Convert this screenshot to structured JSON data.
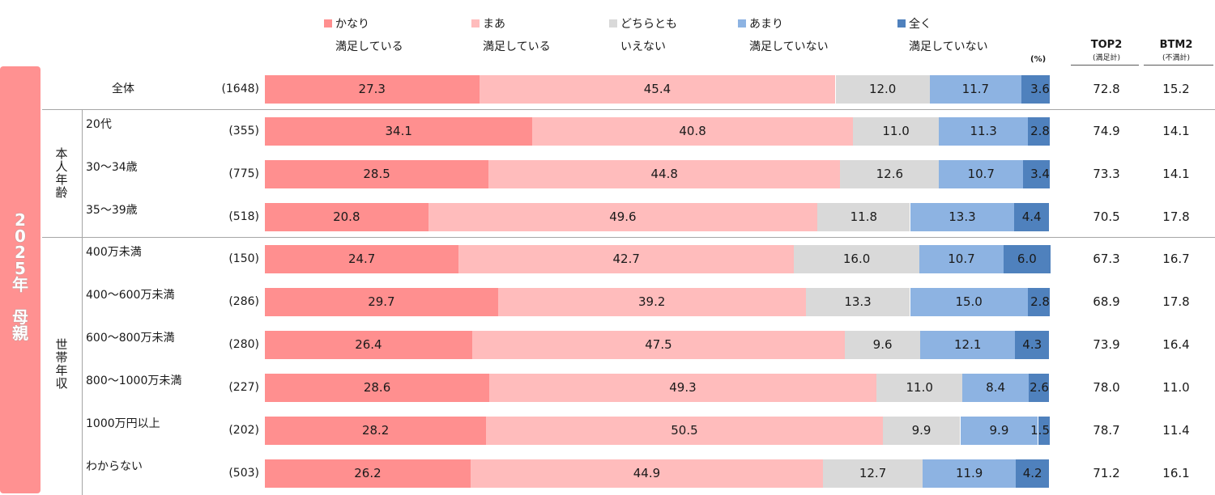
{
  "chart_data": {
    "type": "bar",
    "orientation": "horizontal-stacked-100",
    "unit_label": "(%)",
    "legend_position": "top",
    "series": [
      {
        "name": "かなり満足している",
        "line1": "かなり",
        "line2": "満足している",
        "color": "#ff8f8f"
      },
      {
        "name": "まあ満足している",
        "line1": "まあ",
        "line2": "満足している",
        "color": "#ffbcbc"
      },
      {
        "name": "どちらともいえない",
        "line1": "どちらとも",
        "line2": "いえない",
        "color": "#d9d9d9"
      },
      {
        "name": "あまり満足していない",
        "line1": "あまり",
        "line2": "満足していない",
        "color": "#8db3e2"
      },
      {
        "name": "全く満足していない",
        "line1": "全く",
        "line2": "満足していない",
        "color": "#4f81bd"
      }
    ],
    "summary_columns": [
      {
        "title": "TOP2",
        "subtitle": "(満足計)"
      },
      {
        "title": "BTM2",
        "subtitle": "(不満計)"
      }
    ],
    "side_label": [
      "2",
      "0",
      "2",
      "5",
      "年",
      "",
      "母",
      "親"
    ],
    "groups": [
      {
        "name": "",
        "chars": []
      },
      {
        "name": "本人年齢",
        "chars": [
          "本",
          "人",
          "年",
          "齢"
        ]
      },
      {
        "name": "世帯年収",
        "chars": [
          "世",
          "帯",
          "年",
          "収"
        ]
      }
    ],
    "rows": [
      {
        "label": "全体",
        "n": "(1648)",
        "group": 0,
        "values": [
          27.3,
          45.4,
          12.0,
          11.7,
          3.6
        ],
        "top2": "72.8",
        "btm2": "15.2"
      },
      {
        "label": "20代",
        "n": "(355)",
        "group": 1,
        "values": [
          34.1,
          40.8,
          11.0,
          11.3,
          2.8
        ],
        "top2": "74.9",
        "btm2": "14.1"
      },
      {
        "label": "30～34歳",
        "n": "(775)",
        "group": 1,
        "values": [
          28.5,
          44.8,
          12.6,
          10.7,
          3.4
        ],
        "top2": "73.3",
        "btm2": "14.1"
      },
      {
        "label": "35～39歳",
        "n": "(518)",
        "group": 1,
        "values": [
          20.8,
          49.6,
          11.8,
          13.3,
          4.4
        ],
        "top2": "70.5",
        "btm2": "17.8"
      },
      {
        "label": "400万未満",
        "n": "(150)",
        "group": 2,
        "values": [
          24.7,
          42.7,
          16.0,
          10.7,
          6.0
        ],
        "top2": "67.3",
        "btm2": "16.7"
      },
      {
        "label": "400～600万未満",
        "n": "(286)",
        "group": 2,
        "values": [
          29.7,
          39.2,
          13.3,
          15.0,
          2.8
        ],
        "top2": "68.9",
        "btm2": "17.8"
      },
      {
        "label": "600～800万未満",
        "n": "(280)",
        "group": 2,
        "values": [
          26.4,
          47.5,
          9.6,
          12.1,
          4.3
        ],
        "top2": "73.9",
        "btm2": "16.4"
      },
      {
        "label": "800～1000万未満",
        "n": "(227)",
        "group": 2,
        "values": [
          28.6,
          49.3,
          11.0,
          8.4,
          2.6
        ],
        "top2": "78.0",
        "btm2": "11.0"
      },
      {
        "label": "1000万円以上",
        "n": "(202)",
        "group": 2,
        "values": [
          28.2,
          50.5,
          9.9,
          9.9,
          1.5
        ],
        "top2": "78.7",
        "btm2": "11.4"
      },
      {
        "label": "わからない",
        "n": "(503)",
        "group": 2,
        "values": [
          26.2,
          44.9,
          12.7,
          11.9,
          4.2
        ],
        "top2": "71.2",
        "btm2": "16.1"
      }
    ],
    "xlim": [
      0,
      100
    ]
  }
}
